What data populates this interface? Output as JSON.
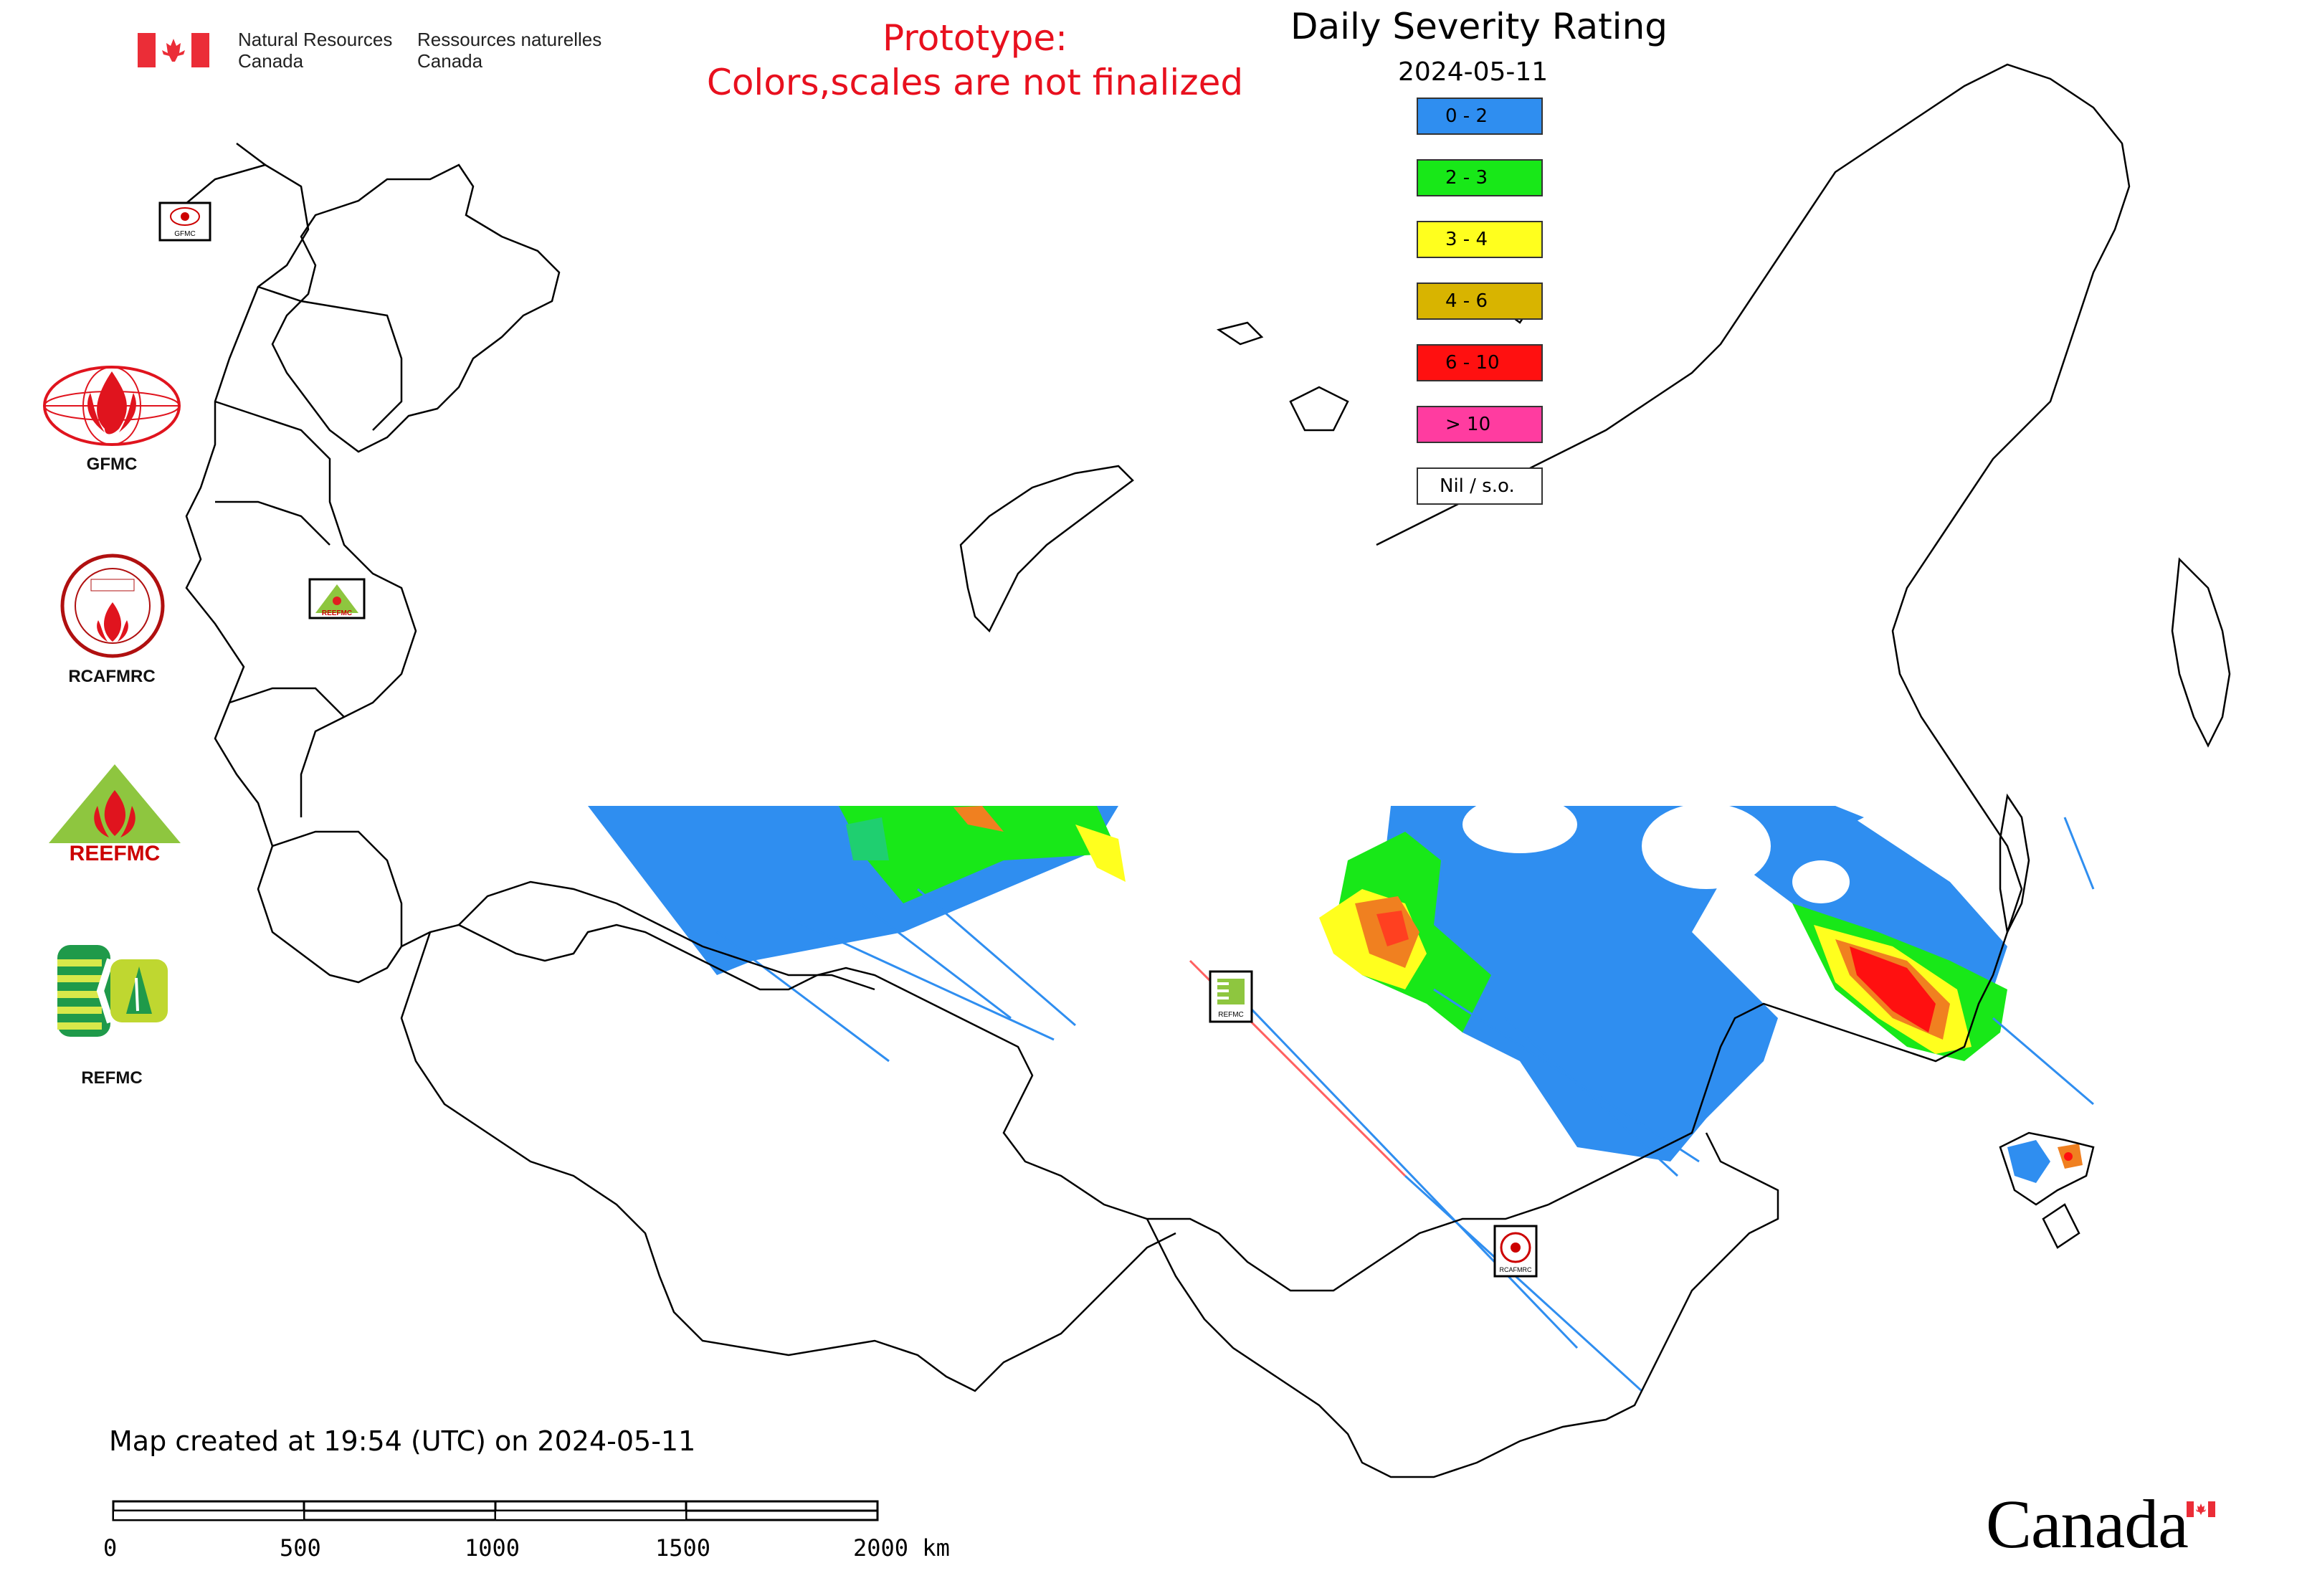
{
  "header": {
    "department_en_line1": "Natural Resources",
    "department_en_line2": "Canada",
    "department_fr_line1": "Ressources naturelles",
    "department_fr_line2": "Canada",
    "prototype_line1": "Prototype:",
    "prototype_line2": "Colors,scales are not finalized",
    "title": "Daily Severity Rating",
    "date": "2024-05-11"
  },
  "legend": {
    "items": [
      {
        "label": "0 - 2",
        "color": "#2f8ef0"
      },
      {
        "label": "2 - 3",
        "color": "#18e818"
      },
      {
        "label": "3 - 4",
        "color": "#ffff1e"
      },
      {
        "label": "4 - 6",
        "color": "#d8b400"
      },
      {
        "label": "6 - 10",
        "color": "#ff1010"
      },
      {
        "label": "> 10",
        "color": "#ff3ca0"
      },
      {
        "label": "Nil / s.o.",
        "color": "#ffffff"
      }
    ]
  },
  "organizations": [
    {
      "name": "GFMC",
      "icon": "gfmc-logo-icon"
    },
    {
      "name": "RCAFMRC",
      "icon": "rcafmrc-logo-icon"
    },
    {
      "name": "REEFMC",
      "icon": "reefmc-logo-icon"
    },
    {
      "name": "REFMC",
      "icon": "refmc-logo-icon"
    }
  ],
  "map_logo_labels": {
    "gfmc": "GFMC",
    "reefmc": "REEFMC",
    "refmc": "REFMC",
    "rcafmrc": "RCAFMRC"
  },
  "footer": {
    "created": "Map created at 19:54 (UTC) on 2024-05-11",
    "scale_ticks": [
      "0",
      "500",
      "1000",
      "1500",
      "2000 km"
    ],
    "wordmark": "Canada"
  },
  "colors": {
    "prototype_text": "#e8101e",
    "flag_red": "#eb2d37"
  }
}
